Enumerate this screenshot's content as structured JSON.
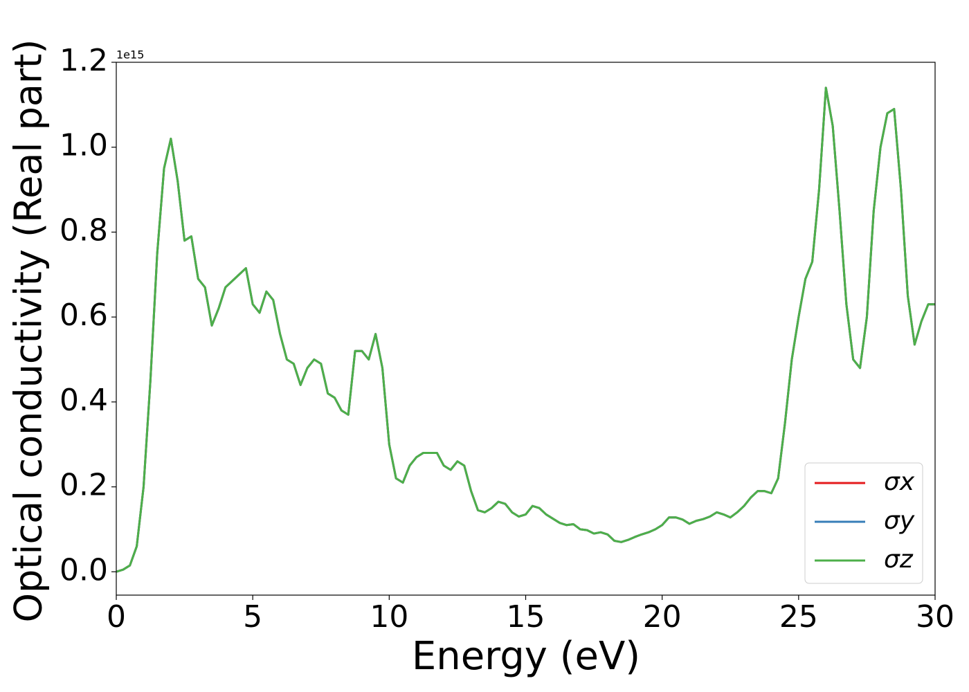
{
  "chart_data": {
    "type": "line",
    "y_label": "Optical conductivity (Real part)",
    "x_label": "Energy (eV)",
    "offset_text": "1e15",
    "xlim": [
      0,
      30
    ],
    "ylim": [
      -0.055,
      1.2
    ],
    "xticks": [
      0,
      5,
      10,
      15,
      20,
      25,
      30
    ],
    "yticks": [
      {
        "value": 0,
        "label": "0.0"
      },
      0.2,
      0.4,
      0.6,
      0.8,
      {
        "value": 1,
        "label": "1.0"
      },
      1.2
    ],
    "legend": "lower right",
    "x": [
      0,
      0.25,
      0.5,
      0.75,
      1,
      1.25,
      1.5,
      1.75,
      2,
      2.25,
      2.5,
      2.75,
      3,
      3.25,
      3.5,
      3.75,
      4,
      4.25,
      4.5,
      4.75,
      5,
      5.25,
      5.5,
      5.75,
      6,
      6.25,
      6.5,
      6.75,
      7,
      7.25,
      7.5,
      7.75,
      8,
      8.25,
      8.5,
      8.75,
      9,
      9.25,
      9.5,
      9.75,
      10,
      10.25,
      10.5,
      10.75,
      11,
      11.25,
      11.5,
      11.75,
      12,
      12.25,
      12.5,
      12.75,
      13,
      13.25,
      13.5,
      13.75,
      14,
      14.25,
      14.5,
      14.75,
      15,
      15.25,
      15.5,
      15.75,
      16,
      16.25,
      16.5,
      16.75,
      17,
      17.25,
      17.5,
      17.75,
      18,
      18.25,
      18.5,
      18.75,
      19,
      19.25,
      19.5,
      19.75,
      20,
      20.25,
      20.5,
      20.75,
      21,
      21.25,
      21.5,
      21.75,
      22,
      22.25,
      22.5,
      22.75,
      23,
      23.25,
      23.5,
      23.75,
      24,
      24.25,
      24.5,
      24.75,
      25,
      25.25,
      25.5,
      25.75,
      26,
      26.25,
      26.5,
      26.75,
      27,
      27.25,
      27.5,
      27.75,
      28,
      28.25,
      28.5,
      28.75,
      29,
      29.25,
      29.5,
      29.75,
      30
    ],
    "series": [
      {
        "name": "σx",
        "color": "#e41a1c",
        "values": [
          0,
          0.005,
          0.015,
          0.06,
          0.2,
          0.45,
          0.75,
          0.95,
          1.02,
          0.92,
          0.78,
          0.79,
          0.69,
          0.67,
          0.58,
          0.62,
          0.67,
          0.685,
          0.7,
          0.715,
          0.63,
          0.61,
          0.66,
          0.64,
          0.56,
          0.5,
          0.49,
          0.44,
          0.48,
          0.5,
          0.49,
          0.42,
          0.41,
          0.38,
          0.37,
          0.52,
          0.52,
          0.5,
          0.56,
          0.48,
          0.3,
          0.22,
          0.21,
          0.25,
          0.27,
          0.28,
          0.28,
          0.28,
          0.25,
          0.24,
          0.26,
          0.25,
          0.19,
          0.145,
          0.14,
          0.15,
          0.165,
          0.16,
          0.14,
          0.13,
          0.135,
          0.155,
          0.15,
          0.135,
          0.125,
          0.115,
          0.11,
          0.112,
          0.1,
          0.098,
          0.09,
          0.093,
          0.088,
          0.073,
          0.07,
          0.075,
          0.082,
          0.088,
          0.093,
          0.1,
          0.11,
          0.128,
          0.128,
          0.123,
          0.113,
          0.12,
          0.124,
          0.13,
          0.14,
          0.135,
          0.128,
          0.14,
          0.155,
          0.175,
          0.19,
          0.19,
          0.185,
          0.22,
          0.35,
          0.5,
          0.6,
          0.69,
          0.73,
          0.9,
          1.14,
          1.05,
          0.85,
          0.63,
          0.5,
          0.48,
          0.6,
          0.85,
          1.0,
          1.08,
          1.09,
          0.9,
          0.65,
          0.535,
          0.59,
          0.63,
          0.63
        ]
      },
      {
        "name": "σy",
        "color": "#377eb8",
        "values": [
          0,
          0.005,
          0.015,
          0.06,
          0.2,
          0.45,
          0.75,
          0.95,
          1.02,
          0.92,
          0.78,
          0.79,
          0.69,
          0.67,
          0.58,
          0.62,
          0.67,
          0.685,
          0.7,
          0.715,
          0.63,
          0.61,
          0.66,
          0.64,
          0.56,
          0.5,
          0.49,
          0.44,
          0.48,
          0.5,
          0.49,
          0.42,
          0.41,
          0.38,
          0.37,
          0.52,
          0.52,
          0.5,
          0.56,
          0.48,
          0.3,
          0.22,
          0.21,
          0.25,
          0.27,
          0.28,
          0.28,
          0.28,
          0.25,
          0.24,
          0.26,
          0.25,
          0.19,
          0.145,
          0.14,
          0.15,
          0.165,
          0.16,
          0.14,
          0.13,
          0.135,
          0.155,
          0.15,
          0.135,
          0.125,
          0.115,
          0.11,
          0.112,
          0.1,
          0.098,
          0.09,
          0.093,
          0.088,
          0.073,
          0.07,
          0.075,
          0.082,
          0.088,
          0.093,
          0.1,
          0.11,
          0.128,
          0.128,
          0.123,
          0.113,
          0.12,
          0.124,
          0.13,
          0.14,
          0.135,
          0.128,
          0.14,
          0.155,
          0.175,
          0.19,
          0.19,
          0.185,
          0.22,
          0.35,
          0.5,
          0.6,
          0.69,
          0.73,
          0.9,
          1.14,
          1.05,
          0.85,
          0.63,
          0.5,
          0.48,
          0.6,
          0.85,
          1.0,
          1.08,
          1.09,
          0.9,
          0.65,
          0.535,
          0.59,
          0.63,
          0.63
        ]
      },
      {
        "name": "σz",
        "color": "#4daf4a",
        "values": [
          0,
          0.005,
          0.015,
          0.06,
          0.2,
          0.45,
          0.75,
          0.95,
          1.02,
          0.92,
          0.78,
          0.79,
          0.69,
          0.67,
          0.58,
          0.62,
          0.67,
          0.685,
          0.7,
          0.715,
          0.63,
          0.61,
          0.66,
          0.64,
          0.56,
          0.5,
          0.49,
          0.44,
          0.48,
          0.5,
          0.49,
          0.42,
          0.41,
          0.38,
          0.37,
          0.52,
          0.52,
          0.5,
          0.56,
          0.48,
          0.3,
          0.22,
          0.21,
          0.25,
          0.27,
          0.28,
          0.28,
          0.28,
          0.25,
          0.24,
          0.26,
          0.25,
          0.19,
          0.145,
          0.14,
          0.15,
          0.165,
          0.16,
          0.14,
          0.13,
          0.135,
          0.155,
          0.15,
          0.135,
          0.125,
          0.115,
          0.11,
          0.112,
          0.1,
          0.098,
          0.09,
          0.093,
          0.088,
          0.073,
          0.07,
          0.075,
          0.082,
          0.088,
          0.093,
          0.1,
          0.11,
          0.128,
          0.128,
          0.123,
          0.113,
          0.12,
          0.124,
          0.13,
          0.14,
          0.135,
          0.128,
          0.14,
          0.155,
          0.175,
          0.19,
          0.19,
          0.185,
          0.22,
          0.35,
          0.5,
          0.6,
          0.69,
          0.73,
          0.9,
          1.14,
          1.05,
          0.85,
          0.63,
          0.5,
          0.48,
          0.6,
          0.85,
          1.0,
          1.08,
          1.09,
          0.9,
          0.65,
          0.535,
          0.59,
          0.63,
          0.63
        ]
      }
    ]
  }
}
